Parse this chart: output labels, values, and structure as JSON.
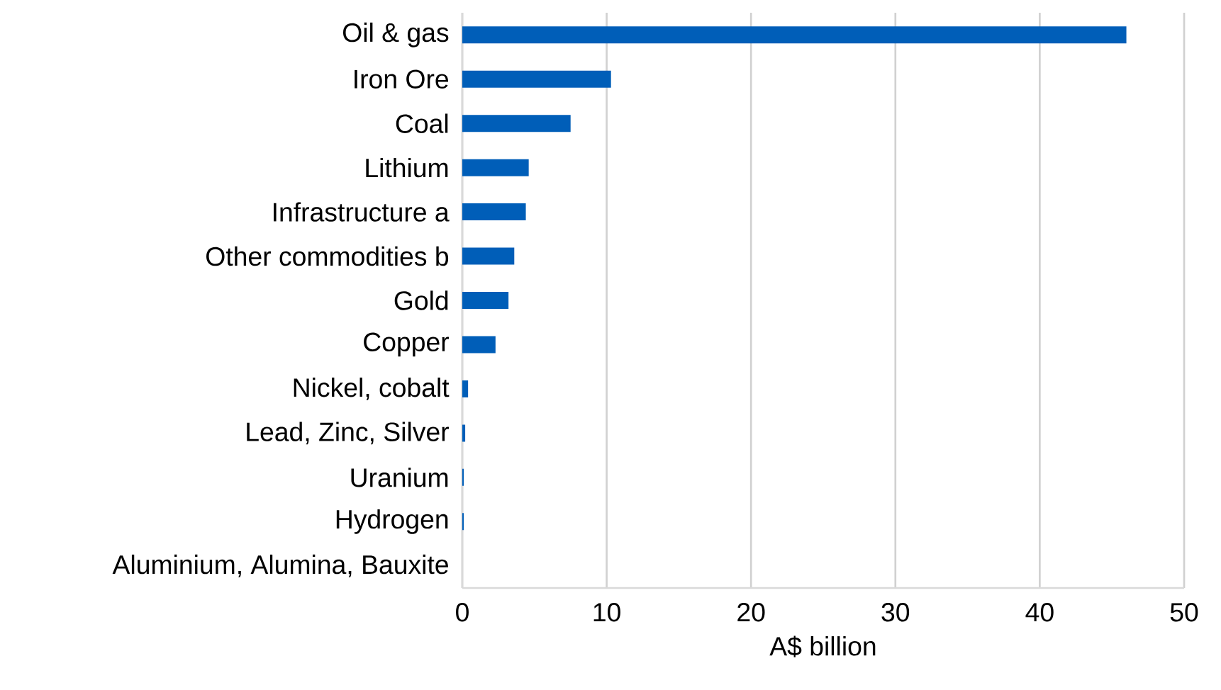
{
  "chart_data": {
    "type": "bar",
    "orientation": "horizontal",
    "xlabel": "A$ billion",
    "categories": [
      "Oil & gas",
      "Iron Ore",
      "Coal",
      "Lithium",
      "Infrastructure a",
      "Other commodities b",
      "Gold",
      "Copper",
      "Nickel, cobalt",
      "Lead, Zinc, Silver",
      "Uranium",
      "Hydrogen",
      "Aluminium, Alumina, Bauxite"
    ],
    "values": [
      46.0,
      10.3,
      7.5,
      4.6,
      4.4,
      3.6,
      3.2,
      2.3,
      0.4,
      0.2,
      0.1,
      0.1,
      0
    ],
    "color": "#005eb8",
    "xlim": [
      0,
      50
    ],
    "xticks": [
      0,
      10,
      20,
      30,
      40,
      50
    ],
    "grid": "x"
  }
}
